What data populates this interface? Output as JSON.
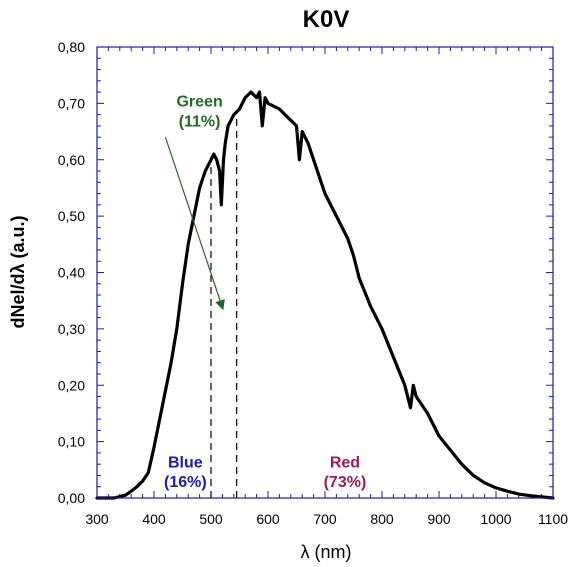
{
  "chart_data": {
    "type": "line",
    "title": "K0V",
    "xlabel": "λ (nm)",
    "ylabel": "dNel/dλ (a.u.)",
    "xlim": [
      300,
      1100
    ],
    "ylim": [
      0,
      0.8
    ],
    "xticks": [
      "300",
      "400",
      "500",
      "600",
      "700",
      "800",
      "900",
      "1000",
      "1100"
    ],
    "yticks": [
      "0,00",
      "0,10",
      "0,20",
      "0,30",
      "0,40",
      "0,50",
      "0,60",
      "0,70",
      "0,80"
    ],
    "grid": false,
    "series": [
      {
        "color": "#000000",
        "x": [
          300,
          330,
          350,
          360,
          370,
          380,
          390,
          400,
          410,
          420,
          430,
          440,
          450,
          460,
          470,
          480,
          490,
          500,
          505,
          510,
          515,
          518,
          522,
          525,
          530,
          540,
          550,
          560,
          570,
          580,
          585,
          590,
          595,
          600,
          610,
          620,
          630,
          640,
          650,
          655,
          660,
          670,
          680,
          690,
          700,
          720,
          740,
          750,
          760,
          780,
          800,
          820,
          840,
          850,
          855,
          860,
          880,
          900,
          920,
          940,
          960,
          980,
          1000,
          1020,
          1040,
          1060,
          1080,
          1100
        ],
        "y": [
          0.0,
          0.0,
          0.005,
          0.012,
          0.02,
          0.03,
          0.045,
          0.09,
          0.14,
          0.19,
          0.24,
          0.3,
          0.38,
          0.45,
          0.5,
          0.55,
          0.58,
          0.6,
          0.61,
          0.6,
          0.58,
          0.52,
          0.6,
          0.63,
          0.66,
          0.68,
          0.69,
          0.71,
          0.72,
          0.71,
          0.72,
          0.66,
          0.71,
          0.7,
          0.695,
          0.69,
          0.68,
          0.67,
          0.66,
          0.6,
          0.65,
          0.63,
          0.6,
          0.57,
          0.54,
          0.5,
          0.46,
          0.43,
          0.39,
          0.34,
          0.3,
          0.25,
          0.2,
          0.16,
          0.2,
          0.18,
          0.15,
          0.11,
          0.085,
          0.06,
          0.04,
          0.027,
          0.018,
          0.012,
          0.007,
          0.004,
          0.002,
          0.0
        ]
      }
    ],
    "dividers": [
      500,
      545
    ],
    "annotations": [
      {
        "label": "Blue",
        "value": "(16%)",
        "color": "#1a1ab4",
        "x": 455,
        "y": 0.065,
        "y2": 0.03
      },
      {
        "label": "Green",
        "value": "(11%)",
        "color": "#1f6b24",
        "x": 480,
        "y": 0.705,
        "y2": 0.67
      },
      {
        "label": "Red",
        "value": "(73%)",
        "color": "#a0185a",
        "x": 735,
        "y": 0.065,
        "y2": 0.03
      }
    ],
    "arrow": {
      "from": [
        420,
        0.64
      ],
      "to": [
        521,
        0.335
      ],
      "color": "#1f6b24"
    }
  }
}
